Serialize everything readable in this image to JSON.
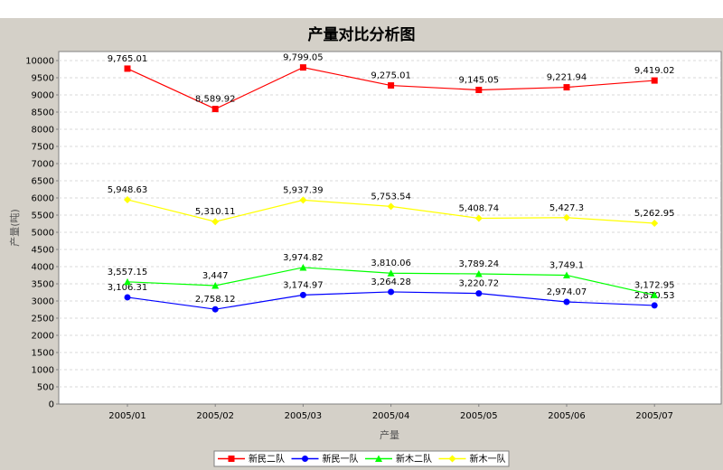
{
  "chart_data": {
    "type": "line",
    "title": "产量对比分析图",
    "xlabel": "产量",
    "ylabel": "产量(吨)",
    "categories": [
      "2005/01",
      "2005/02",
      "2005/03",
      "2005/04",
      "2005/05",
      "2005/06",
      "2005/07"
    ],
    "ylim": [
      0,
      10300
    ],
    "yticks": [
      0,
      500,
      1000,
      1500,
      2000,
      2500,
      3000,
      3500,
      4000,
      4500,
      5000,
      5500,
      6000,
      6500,
      7000,
      7500,
      8000,
      8500,
      9000,
      9500,
      10000
    ],
    "grid": true,
    "legend_position": "bottom",
    "series": [
      {
        "name": "新民二队",
        "color": "#ff0000",
        "marker": "square",
        "values": [
          9765.01,
          8589.92,
          9799.05,
          9275.01,
          9145.05,
          9221.94,
          9419.02
        ],
        "labels": [
          "9,765.01",
          "8,589.92",
          "9,799.05",
          "9,275.01",
          "9,145.05",
          "9,221.94",
          "9,419.02"
        ]
      },
      {
        "name": "新民一队",
        "color": "#0000ff",
        "marker": "circle",
        "values": [
          3106.31,
          2758.12,
          3174.97,
          3264.28,
          3220.72,
          2974.07,
          2870.53
        ],
        "labels": [
          "3,106.31",
          "2,758.12",
          "3,174.97",
          "3,264.28",
          "3,220.72",
          "2,974.07",
          "2,870.53"
        ]
      },
      {
        "name": "新木二队",
        "color": "#00ff00",
        "marker": "triangle",
        "values": [
          3557.15,
          3447,
          3974.82,
          3810.06,
          3789.24,
          3749.1,
          3172.95
        ],
        "labels": [
          "3,557.15",
          "3,447",
          "3,974.82",
          "3,810.06",
          "3,789.24",
          "3,749.1",
          "3,172.95"
        ]
      },
      {
        "name": "新木一队",
        "color": "#ffff00",
        "marker": "diamond",
        "values": [
          5948.63,
          5310.11,
          5937.39,
          5753.54,
          5408.74,
          5427.3,
          5262.95
        ],
        "labels": [
          "5,948.63",
          "5,310.11",
          "5,937.39",
          "5,753.54",
          "5,408.74",
          "5,427.3",
          "5,262.95"
        ]
      }
    ]
  }
}
